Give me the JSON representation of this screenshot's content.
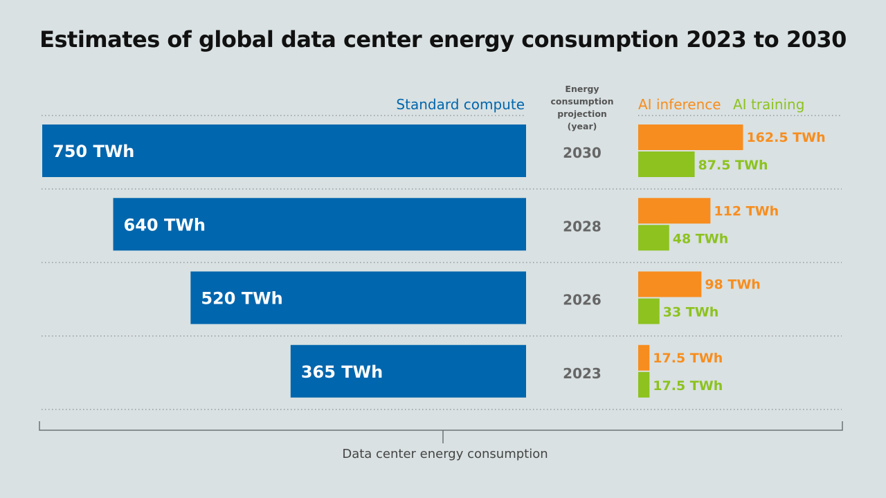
{
  "chart_data": {
    "type": "bar",
    "orientation": "horizontal",
    "title": "Estimates of global data center energy consumption 2023 to 2030",
    "xlabel": "Data center energy consumption",
    "ylabel": "",
    "unit": "TWh",
    "year_column_header": [
      "Energy",
      "consumption",
      "projection",
      "(year)"
    ],
    "categories": [
      "2030",
      "2028",
      "2026",
      "2023"
    ],
    "series": [
      {
        "name": "Standard compute",
        "color": "#0066ad",
        "values": [
          750,
          640,
          520,
          365
        ],
        "labels": [
          "750 TWh",
          "640 TWh",
          "520 TWh",
          "365 TWh"
        ]
      },
      {
        "name": "AI inference",
        "color": "#f78d1e",
        "values": [
          162.5,
          112,
          98,
          17.5
        ],
        "labels": [
          "162.5 TWh",
          "112 TWh",
          "98 TWh",
          "17.5 TWh"
        ]
      },
      {
        "name": "AI training",
        "color": "#8dc21f",
        "values": [
          87.5,
          48,
          33,
          17.5
        ],
        "labels": [
          "87.5 TWh",
          "48 TWh",
          "33 TWh",
          "17.5 TWh"
        ]
      }
    ],
    "legend": {
      "standard": "Standard compute",
      "inference": "AI inference",
      "training": "AI training",
      "placement": "top"
    },
    "xlim": [
      0,
      750
    ],
    "grid": false
  }
}
